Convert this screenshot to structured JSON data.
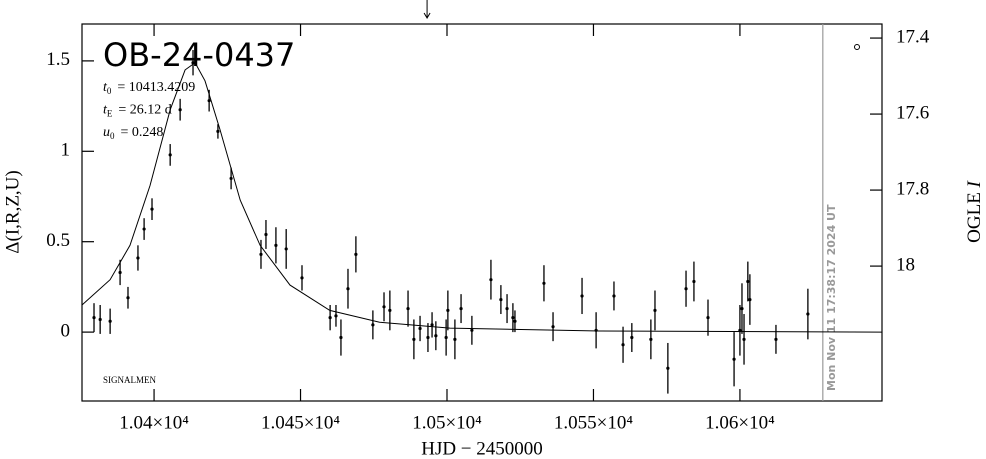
{
  "chart_data": {
    "type": "scatter",
    "title": "OB-24-0437",
    "params": [
      {
        "symbol": "t",
        "sub": "0",
        "text": "= 10413.4209"
      },
      {
        "symbol": "t",
        "sub": "E",
        "text": "= 26.12  d"
      },
      {
        "symbol": "u",
        "sub": "0",
        "text": "= 0.248"
      }
    ],
    "credit": "SIGNALMEN",
    "x_label": "HJD  −  2450000",
    "y_label": "Δ(I,R,Z,U)",
    "y2_label": {
      "text": "OGLE ",
      "italic": "I"
    },
    "xlim": [
      10375.4,
      10648.5
    ],
    "ylim": [
      -0.381,
      1.704
    ],
    "y2lim": [
      18.355,
      17.363
    ],
    "xticks": [
      {
        "value": 10400,
        "label": "1.04×10⁴"
      },
      {
        "value": 10450,
        "label": "1.045×10⁴"
      },
      {
        "value": 10500,
        "label": "1.05×10⁴"
      },
      {
        "value": 10550,
        "label": "1.055×10⁴"
      },
      {
        "value": 10600,
        "label": "1.06×10⁴"
      }
    ],
    "yticks": [
      0,
      0.5,
      1,
      1.5
    ],
    "y2ticks": [
      17.4,
      17.6,
      17.8,
      18
    ],
    "color": "#000000",
    "series": [
      {
        "x": [
          10379.5,
          10381.6,
          10385.0,
          10388.4,
          10391.1,
          10394.5,
          10396.6,
          10399.3,
          10405.5,
          10408.9,
          10413.3,
          10418.8,
          10421.8,
          10426.3,
          10436.5,
          10438.2,
          10441.6,
          10445.1,
          10450.5,
          10460.1,
          10462.1,
          10463.8,
          10466.2,
          10468.9,
          10474.7,
          10478.5,
          10480.5,
          10486.7,
          10488.7,
          10490.8,
          10493.5,
          10494.9,
          10496.2,
          10499.7,
          10500.3,
          10502.7,
          10504.8,
          10508.5,
          10515.0,
          10518.4,
          10520.5,
          10522.5,
          10523.2,
          10533.1,
          10536.2,
          10546.1,
          10550.9,
          10557.0,
          10560.1,
          10563.1,
          10569.6,
          10571.0,
          10575.4,
          10581.6,
          10584.3,
          10589.1,
          10598.0,
          10600.0,
          10600.7,
          10601.4,
          10602.7,
          10603.4,
          10612.3,
          10623.2
        ],
        "values": [
          0.08,
          0.07,
          0.06,
          0.33,
          0.19,
          0.41,
          0.57,
          0.68,
          0.98,
          1.23,
          1.49,
          1.28,
          1.11,
          0.85,
          0.43,
          0.54,
          0.48,
          0.46,
          0.3,
          0.08,
          0.09,
          -0.03,
          0.24,
          0.43,
          0.04,
          0.14,
          0.12,
          0.13,
          -0.04,
          0.02,
          -0.03,
          0.04,
          -0.02,
          -0.03,
          0.12,
          -0.04,
          0.13,
          0.01,
          0.29,
          0.18,
          0.13,
          0.08,
          0.06,
          0.27,
          0.03,
          0.2,
          0.01,
          0.2,
          -0.07,
          -0.03,
          -0.04,
          0.12,
          -0.2,
          0.24,
          0.28,
          0.08,
          -0.15,
          0.01,
          0.13,
          -0.04,
          0.28,
          0.18,
          -0.04,
          0.1
        ],
        "errors": [
          0.08,
          0.08,
          0.07,
          0.07,
          0.06,
          0.07,
          0.06,
          0.06,
          0.06,
          0.06,
          0.07,
          0.06,
          0.04,
          0.06,
          0.08,
          0.08,
          0.1,
          0.11,
          0.07,
          0.07,
          0.06,
          0.1,
          0.11,
          0.1,
          0.08,
          0.08,
          0.11,
          0.1,
          0.11,
          0.07,
          0.08,
          0.07,
          0.08,
          0.1,
          0.11,
          0.11,
          0.08,
          0.08,
          0.11,
          0.08,
          0.08,
          0.08,
          0.06,
          0.1,
          0.08,
          0.1,
          0.1,
          0.08,
          0.1,
          0.08,
          0.11,
          0.11,
          0.14,
          0.1,
          0.11,
          0.1,
          0.15,
          0.14,
          0.14,
          0.14,
          0.11,
          0.14,
          0.08,
          0.14
        ]
      }
    ],
    "model": {
      "x": [
        10375.4,
        10385,
        10391.8,
        10398.6,
        10405.5,
        10410.6,
        10414,
        10417.4,
        10422.5,
        10429.4,
        10436.2,
        10446.4,
        10460,
        10477,
        10501,
        10552,
        10648.5
      ],
      "values": [
        0.15,
        0.29,
        0.48,
        0.81,
        1.23,
        1.45,
        1.49,
        1.39,
        1.12,
        0.73,
        0.48,
        0.26,
        0.12,
        0.055,
        0.022,
        0.006,
        0
      ]
    },
    "arrow_x": 10493.2,
    "now_line": {
      "x": 10628.3,
      "label": "Mon Nov 11 17:38:17 2024 UT",
      "color": "#999999"
    }
  }
}
